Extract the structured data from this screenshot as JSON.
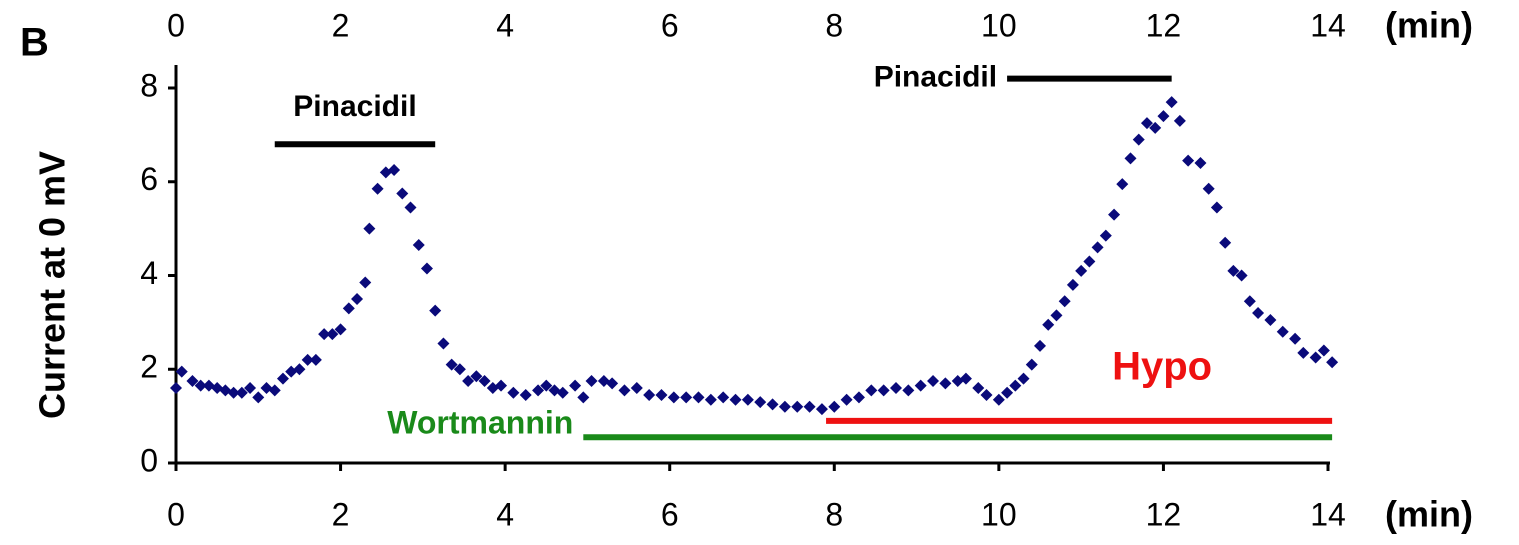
{
  "chart_data": {
    "type": "scatter",
    "panel_label": "B",
    "ylabel": "Current at 0 mV",
    "xlabel": "(min)",
    "color": "#0a0a7a",
    "xlim": [
      0,
      14
    ],
    "ylim": [
      0,
      8.5
    ],
    "xticks": [
      0,
      2,
      4,
      6,
      8,
      10,
      12,
      14
    ],
    "yticks": [
      0,
      2,
      4,
      6,
      8
    ],
    "top_axis_labels": true,
    "x": [
      0,
      0.07,
      0.2,
      0.3,
      0.4,
      0.5,
      0.6,
      0.7,
      0.8,
      0.9,
      1.0,
      1.1,
      1.2,
      1.3,
      1.4,
      1.5,
      1.6,
      1.7,
      1.8,
      1.9,
      2.0,
      2.1,
      2.2,
      2.3,
      2.35,
      2.45,
      2.55,
      2.65,
      2.75,
      2.85,
      2.95,
      3.05,
      3.15,
      3.25,
      3.35,
      3.45,
      3.55,
      3.65,
      3.75,
      3.85,
      3.95,
      4.1,
      4.25,
      4.4,
      4.5,
      4.6,
      4.7,
      4.85,
      4.95,
      5.05,
      5.2,
      5.3,
      5.45,
      5.6,
      5.75,
      5.9,
      6.05,
      6.2,
      6.35,
      6.5,
      6.65,
      6.8,
      6.95,
      7.1,
      7.25,
      7.4,
      7.55,
      7.7,
      7.85,
      8.0,
      8.15,
      8.3,
      8.45,
      8.6,
      8.75,
      8.9,
      9.05,
      9.2,
      9.35,
      9.5,
      9.6,
      9.75,
      9.85,
      10.0,
      10.1,
      10.2,
      10.3,
      10.4,
      10.5,
      10.6,
      10.7,
      10.8,
      10.9,
      11.0,
      11.1,
      11.2,
      11.3,
      11.4,
      11.5,
      11.6,
      11.7,
      11.8,
      11.9,
      12.0,
      12.1,
      12.2,
      12.3,
      12.45,
      12.55,
      12.65,
      12.75,
      12.85,
      12.95,
      13.05,
      13.15,
      13.3,
      13.45,
      13.6,
      13.7,
      13.85,
      13.95,
      14.05
    ],
    "values": [
      1.6,
      1.95,
      1.75,
      1.65,
      1.65,
      1.6,
      1.55,
      1.5,
      1.5,
      1.6,
      1.4,
      1.6,
      1.55,
      1.8,
      1.95,
      2.0,
      2.2,
      2.2,
      2.75,
      2.75,
      2.85,
      3.3,
      3.5,
      3.85,
      5.0,
      5.85,
      6.2,
      6.25,
      5.75,
      5.45,
      4.65,
      4.15,
      3.25,
      2.55,
      2.1,
      2.0,
      1.75,
      1.85,
      1.75,
      1.6,
      1.65,
      1.5,
      1.45,
      1.55,
      1.65,
      1.55,
      1.5,
      1.65,
      1.4,
      1.75,
      1.75,
      1.7,
      1.55,
      1.6,
      1.45,
      1.45,
      1.4,
      1.4,
      1.4,
      1.35,
      1.4,
      1.35,
      1.35,
      1.3,
      1.25,
      1.2,
      1.2,
      1.2,
      1.15,
      1.2,
      1.35,
      1.4,
      1.55,
      1.55,
      1.6,
      1.55,
      1.65,
      1.75,
      1.7,
      1.75,
      1.8,
      1.6,
      1.45,
      1.35,
      1.5,
      1.65,
      1.8,
      2.1,
      2.5,
      2.95,
      3.15,
      3.45,
      3.8,
      4.1,
      4.3,
      4.6,
      4.85,
      5.3,
      5.95,
      6.5,
      6.9,
      7.25,
      7.15,
      7.4,
      7.7,
      7.3,
      6.45,
      6.4,
      5.85,
      5.45,
      4.7,
      4.1,
      4.0,
      3.45,
      3.2,
      3.05,
      2.8,
      2.65,
      2.35,
      2.25,
      2.4,
      2.15
    ],
    "annotations": [
      {
        "label": "Pinacidil",
        "x": [
          1.2,
          3.15
        ],
        "y": 6.8,
        "color": "#000000",
        "label_position": "above"
      },
      {
        "label": "Pinacidil",
        "x": [
          10.1,
          12.1
        ],
        "y": 8.2,
        "color": "#000000",
        "label_position": "left"
      },
      {
        "label": "Wortmannin",
        "x": [
          4.95,
          14.05
        ],
        "y": 0.55,
        "color": "#1a8a1a",
        "label_position": "left"
      },
      {
        "label": "Hypo",
        "x": [
          7.9,
          14.05
        ],
        "y": 0.9,
        "color": "#ee1111",
        "label_position": "above-right"
      }
    ]
  }
}
